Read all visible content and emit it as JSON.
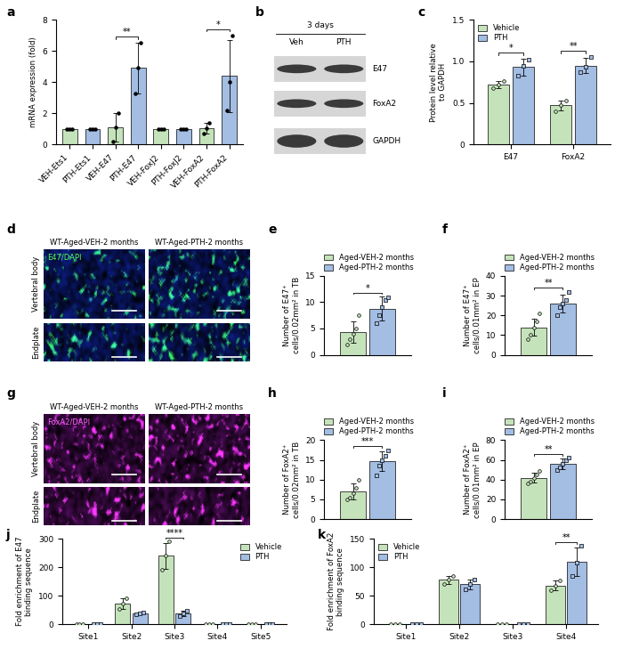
{
  "chart_data": [
    {
      "panel": "a",
      "type": "bar",
      "categories": [
        "VEH-Ets1",
        "PTH-Ets1",
        "VEH-E47",
        "PTH-E47",
        "VEH-FoxJ2",
        "PTH-FoxJ2",
        "VEH-FoxA2",
        "PTH-FoxA2"
      ],
      "values": [
        1,
        1,
        1.1,
        4.9,
        1,
        1,
        1.05,
        4.4
      ],
      "errors": [
        0,
        0,
        0.9,
        1.6,
        0,
        0,
        0.35,
        2.3
      ],
      "points": [
        [
          1,
          1,
          1
        ],
        [
          1,
          1,
          1
        ],
        [
          0.2,
          1.1,
          2.0
        ],
        [
          3.3,
          4.9,
          6.5
        ],
        [
          1,
          1,
          1
        ],
        [
          1,
          1,
          1
        ],
        [
          0.7,
          1.05,
          1.4
        ],
        [
          2.2,
          4.0,
          7.0
        ]
      ],
      "colors": [
        "#c5e3bb",
        "#a3bde3",
        "#c5e3bb",
        "#a3bde3",
        "#c5e3bb",
        "#a3bde3",
        "#c5e3bb",
        "#a3bde3"
      ],
      "marker": "circle",
      "ylabel": "mRNA expression (fold)",
      "ylim": [
        0,
        8
      ],
      "yticks": [
        0,
        2,
        4,
        6,
        8
      ],
      "annotations": [
        {
          "text": "**",
          "between": [
            "VEH-E47",
            "PTH-E47"
          ]
        },
        {
          "text": "*",
          "between": [
            "VEH-FoxA2",
            "PTH-FoxA2"
          ]
        }
      ]
    },
    {
      "panel": "c",
      "type": "bar",
      "categories": [
        "E47",
        "FoxA2"
      ],
      "series": [
        {
          "name": "Vehicle",
          "color": "#c5e3bb",
          "marker": "circle",
          "values": [
            0.72,
            0.47
          ],
          "errors": [
            0.04,
            0.06
          ],
          "points": [
            [
              0.68,
              0.72,
              0.76
            ],
            [
              0.4,
              0.47,
              0.53
            ]
          ]
        },
        {
          "name": "PTH",
          "color": "#a3bde3",
          "marker": "square",
          "values": [
            0.93,
            0.95
          ],
          "errors": [
            0.1,
            0.09
          ],
          "points": [
            [
              0.83,
              0.95,
              1.02
            ],
            [
              0.87,
              0.93,
              1.05
            ]
          ]
        }
      ],
      "ylabel": "Protein level relative\nto GAPDH",
      "ylim": [
        0,
        1.5
      ],
      "yticks": [
        0,
        0.5,
        {
          "value": 1,
          "label": "1.0"
        },
        1.5
      ],
      "legend": "upper left",
      "annotations": [
        {
          "text": "*",
          "category": "E47"
        },
        {
          "text": "**",
          "category": "FoxA2"
        }
      ]
    },
    {
      "panel": "e",
      "type": "bar",
      "categories": [
        null
      ],
      "series": [
        {
          "name": "Aged-VEH-2 months",
          "color": "#c5e3bb",
          "marker": "circle",
          "values": [
            4.3
          ],
          "errors": [
            2.0
          ],
          "points": [
            [
              2.0,
              3.0,
              4.0,
              5.0,
              7.5
            ]
          ]
        },
        {
          "name": "Aged-PTH-2 months",
          "color": "#a3bde3",
          "marker": "square",
          "values": [
            8.8
          ],
          "errors": [
            2.3
          ],
          "points": [
            [
              6.0,
              7.5,
              9.0,
              10.5,
              11.0
            ]
          ]
        }
      ],
      "ylabel": "Number of E47⁺\ncells/0.02mm² in TB",
      "ylim": [
        0,
        15
      ],
      "yticks": [
        0,
        5,
        10,
        15
      ],
      "legend": "top",
      "tick_labels": "y",
      "annotations": [
        {
          "text": "*"
        }
      ]
    },
    {
      "panel": "f",
      "type": "bar",
      "categories": [
        null
      ],
      "series": [
        {
          "name": "Aged-VEH-2 months",
          "color": "#c5e3bb",
          "marker": "circle",
          "values": [
            14
          ],
          "errors": [
            4.5
          ],
          "points": [
            [
              8,
              10,
              14,
              17,
              21
            ]
          ]
        },
        {
          "name": "Aged-PTH-2 months",
          "color": "#a3bde3",
          "marker": "square",
          "values": [
            26
          ],
          "errors": [
            4.5
          ],
          "points": [
            [
              20,
              24,
              26,
              28,
              32
            ]
          ]
        }
      ],
      "ylabel": "Number of E47⁺\ncells/0.01mm² in EP",
      "ylim": [
        0,
        40
      ],
      "yticks": [
        0,
        10,
        20,
        30,
        40
      ],
      "legend": "top",
      "tick_labels": "y",
      "annotations": [
        {
          "text": "**"
        }
      ]
    },
    {
      "panel": "h",
      "type": "bar",
      "categories": [
        null
      ],
      "series": [
        {
          "name": "Aged-VEH-2 months",
          "color": "#c5e3bb",
          "marker": "circle",
          "values": [
            7
          ],
          "errors": [
            2
          ],
          "points": [
            [
              5,
              5.5,
              6.5,
              8,
              10
            ]
          ]
        },
        {
          "name": "Aged-PTH-2 months",
          "color": "#a3bde3",
          "marker": "square",
          "values": [
            14.6
          ],
          "errors": [
            2.5
          ],
          "points": [
            [
              11,
              13.5,
              15,
              16,
              17.5
            ]
          ]
        }
      ],
      "ylabel": "Number of FoxA2⁺\ncells/0.02mm² in TB",
      "ylim": [
        0,
        20
      ],
      "yticks": [
        0,
        5,
        10,
        15,
        20
      ],
      "legend": "top",
      "tick_labels": "y",
      "annotations": [
        {
          "text": "***"
        }
      ]
    },
    {
      "panel": "i",
      "type": "bar",
      "categories": [
        null
      ],
      "series": [
        {
          "name": "Aged-VEH-2 months",
          "color": "#c5e3bb",
          "marker": "circle",
          "values": [
            42
          ],
          "errors": [
            5
          ],
          "points": [
            [
              36,
              38,
              42,
              45,
              49
            ]
          ]
        },
        {
          "name": "Aged-PTH-2 months",
          "color": "#a3bde3",
          "marker": "square",
          "values": [
            56
          ],
          "errors": [
            5
          ],
          "points": [
            [
              50,
              52,
              56,
              60,
              62
            ]
          ]
        }
      ],
      "ylabel": "Number of FoxA2⁺\ncells/0.01mm² in EP",
      "ylim": [
        0,
        80
      ],
      "yticks": [
        0,
        20,
        40,
        60,
        80
      ],
      "legend": "top",
      "tick_labels": "y",
      "annotations": [
        {
          "text": "**"
        }
      ]
    },
    {
      "panel": "j",
      "type": "bar",
      "categories": [
        "Site1",
        "Site2",
        "Site3",
        "Site4",
        "Site5"
      ],
      "series": [
        {
          "name": "Vehicle",
          "color": "#c5e3bb",
          "marker": "circle",
          "values": [
            0,
            73,
            240,
            0,
            0
          ],
          "errors": [
            0,
            18,
            45,
            0,
            0
          ],
          "points": [
            [
              0,
              0,
              0
            ],
            [
              55,
              72,
              92
            ],
            [
              190,
              240,
              290
            ],
            [
              0,
              0,
              0
            ],
            [
              0,
              0,
              0
            ]
          ]
        },
        {
          "name": "PTH",
          "color": "#a3bde3",
          "marker": "square",
          "values": [
            0,
            37,
            38,
            0,
            0
          ],
          "errors": [
            0,
            3,
            8,
            0,
            0
          ],
          "points": [
            [
              0,
              0,
              0
            ],
            [
              34,
              37,
              40
            ],
            [
              30,
              38,
              46
            ],
            [
              0,
              0,
              0
            ],
            [
              0,
              0,
              0
            ]
          ]
        }
      ],
      "ylabel": "Fold enrichment of E47\nbinding sequence",
      "ylim": [
        0,
        300
      ],
      "yticks": [
        0,
        100,
        200,
        300
      ],
      "legend": "upper right",
      "annotations": [
        {
          "text": "****",
          "category": "Site3"
        }
      ]
    },
    {
      "panel": "k",
      "type": "bar",
      "categories": [
        "Site1",
        "Site2",
        "Site3",
        "Site4"
      ],
      "series": [
        {
          "name": "Vehicle",
          "color": "#c5e3bb",
          "marker": "circle",
          "values": [
            0,
            78,
            0,
            68
          ],
          "errors": [
            0,
            7,
            0,
            9
          ],
          "points": [
            [
              0,
              0,
              0
            ],
            [
              71,
              78,
              85
            ],
            [
              0,
              0,
              0
            ],
            [
              59,
              68,
              77
            ]
          ]
        },
        {
          "name": "PTH",
          "color": "#a3bde3",
          "marker": "square",
          "values": [
            0,
            70,
            0,
            110
          ],
          "errors": [
            0,
            9,
            0,
            25
          ],
          "points": [
            [
              0,
              0,
              0
            ],
            [
              61,
              70,
              79
            ],
            [
              0,
              0,
              0
            ],
            [
              85,
              108,
              137
            ]
          ]
        }
      ],
      "ylabel": "Fold enrichment of FoxA2\nbinding sequence",
      "ylim": [
        0,
        150
      ],
      "yticks": [
        0,
        50,
        100,
        150
      ],
      "legend": "upper left",
      "annotations": [
        {
          "text": "**",
          "category": "Site4"
        }
      ]
    }
  ],
  "blot": {
    "panel": "b",
    "title": "3 days",
    "lanes": [
      "Veh",
      "PTH"
    ],
    "bands": [
      "E47",
      "FoxA2",
      "GAPDH"
    ]
  },
  "images": [
    {
      "panel": "d",
      "columns": [
        "WT-Aged-VEH-2 months",
        "WT-Aged-PTH-2 months"
      ],
      "rows": [
        "Vertebral body",
        "Endplate"
      ],
      "stain": "E47/DAPI"
    },
    {
      "panel": "g",
      "columns": [
        "WT-Aged-VEH-2 months",
        "WT-Aged-PTH-2 months"
      ],
      "rows": [
        "Vertebral body",
        "Endplate"
      ],
      "stain": "FoxA2/DAPI"
    }
  ]
}
